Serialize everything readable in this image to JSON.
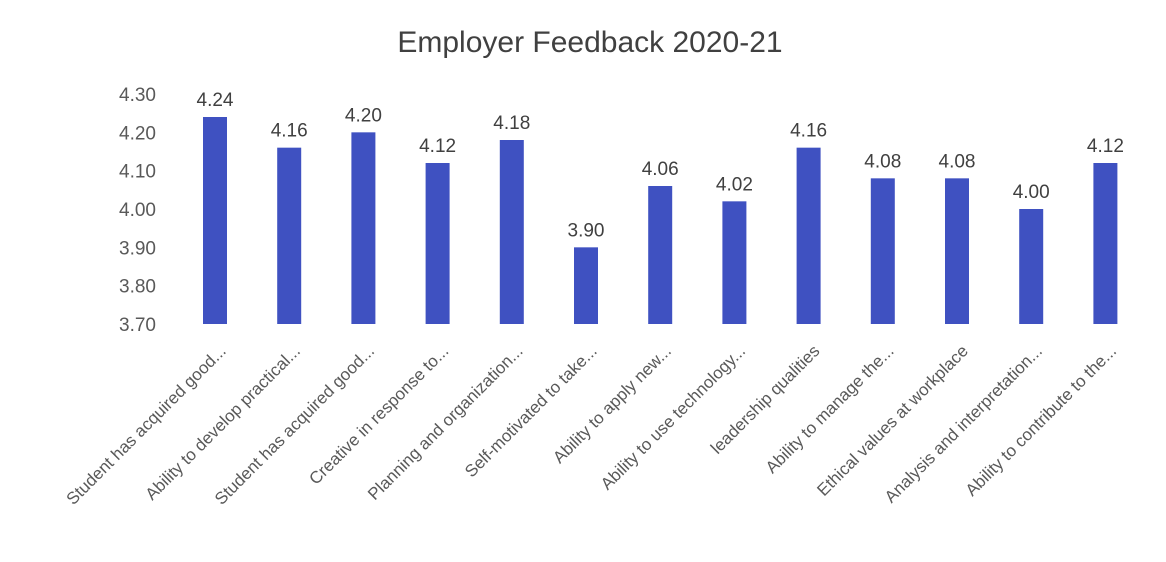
{
  "chart_data": {
    "type": "bar",
    "title": "Employer Feedback 2020-21",
    "xlabel": "",
    "ylabel": "",
    "ylim": [
      3.7,
      4.3
    ],
    "yticks": [
      "4.30",
      "4.20",
      "4.10",
      "4.00",
      "3.90",
      "3.80",
      "3.70"
    ],
    "grid": false,
    "legend": "none",
    "bar_color": "#3f51c1",
    "categories": [
      "Student has acquired good...",
      "Ability to develop practical...",
      "Student has acquired good...",
      "Creative in response to...",
      "Planning and organization...",
      "Self-motivated to take...",
      "Ability to apply new...",
      "Ability to use technology...",
      "leadership qualities",
      "Ability to manage the...",
      "Ethical values at workplace",
      "Analysis and interpretation...",
      "Ability to contribute to the..."
    ],
    "values": [
      4.24,
      4.16,
      4.2,
      4.12,
      4.18,
      3.9,
      4.06,
      4.02,
      4.16,
      4.08,
      4.08,
      4.0,
      4.12
    ],
    "data_labels": [
      "4.24",
      "4.16",
      "4.20",
      "4.12",
      "4.18",
      "3.90",
      "4.06",
      "4.02",
      "4.16",
      "4.08",
      "4.08",
      "4.00",
      "4.12"
    ]
  }
}
